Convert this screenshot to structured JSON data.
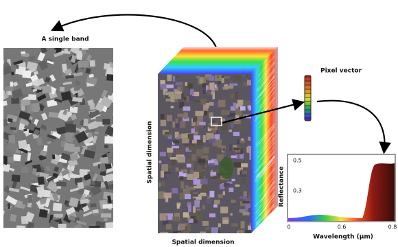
{
  "band": {
    "title": "A single band"
  },
  "cube": {
    "side_label": "Spatial dimension",
    "bottom_label": "Spatial dimension"
  },
  "pixel": {
    "title": "Pixel vector"
  },
  "spectrum": {
    "y_label": "Reflectance",
    "x_label": "Wavelength (μm)",
    "yticks": [
      0.5,
      0.3
    ],
    "xticks": [
      0,
      0.6,
      0.8
    ]
  }
}
